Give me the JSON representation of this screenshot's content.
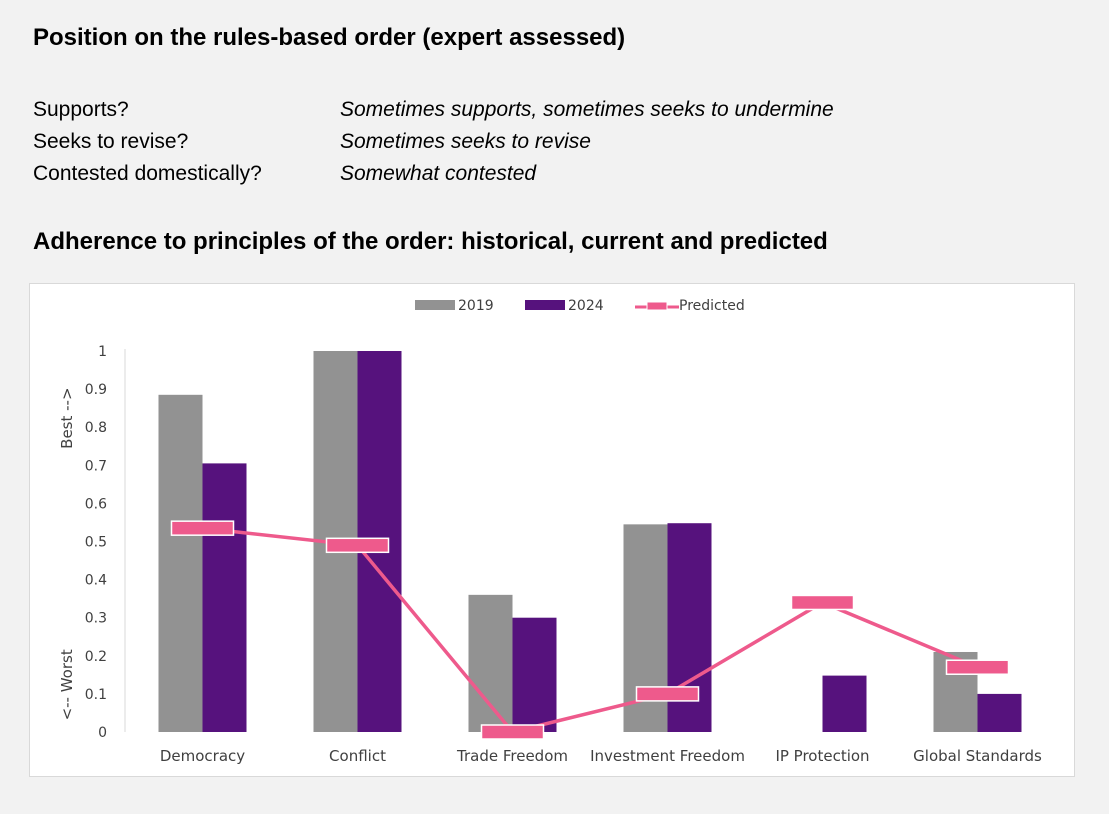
{
  "header": {
    "title": "Position on the rules-based order (expert assessed)"
  },
  "assessment": [
    {
      "question": "Supports?",
      "answer": "Sometimes supports, sometimes seeks to undermine"
    },
    {
      "question": "Seeks to revise?",
      "answer": "Sometimes seeks to revise"
    },
    {
      "question": "Contested domestically?",
      "answer": "Somewhat contested"
    }
  ],
  "section": {
    "title": "Adherence to principles of the order: historical, current and predicted"
  },
  "chart_data": {
    "type": "bar",
    "categories": [
      "Democracy",
      "Conflict",
      "Trade Freedom",
      "Investment Freedom",
      "IP Protection",
      "Global Standards"
    ],
    "series": [
      {
        "name": "2019",
        "type": "bar",
        "color": "#929292",
        "values": [
          0.885,
          1.0,
          0.36,
          0.545,
          null,
          0.21
        ]
      },
      {
        "name": "2024",
        "type": "bar",
        "color": "#56127d",
        "values": [
          0.705,
          1.0,
          0.3,
          0.548,
          0.148,
          0.1
        ]
      },
      {
        "name": "Predicted",
        "type": "line",
        "color": "#ee5a8c",
        "values": [
          0.535,
          0.49,
          0.0,
          0.1,
          0.34,
          0.17
        ]
      }
    ],
    "ylim": [
      0,
      1
    ],
    "yticks": [
      "0",
      "0.1",
      "0.2",
      "0.3",
      "0.4",
      "0.5",
      "0.6",
      "0.7",
      "0.8",
      "0.9",
      "1"
    ],
    "ylabel_top": "Best -->",
    "ylabel_bottom": "<-- Worst",
    "legend_position": "top",
    "grid": false
  }
}
